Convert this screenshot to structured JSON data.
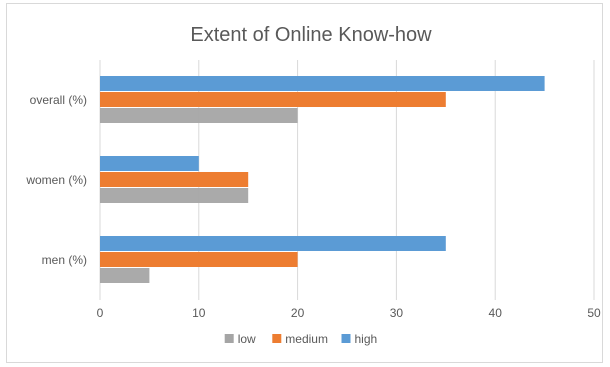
{
  "chart_data": {
    "type": "bar",
    "orientation": "horizontal",
    "title": "Extent of Online Know-how",
    "categories": [
      "men (%)",
      "women (%)",
      "overall (%)"
    ],
    "series": [
      {
        "name": "low",
        "color": "#a5a5a5",
        "values": [
          5,
          15,
          20
        ]
      },
      {
        "name": "medium",
        "color": "#ed7d31",
        "values": [
          20,
          15,
          35
        ]
      },
      {
        "name": "high",
        "color": "#5b9bd5",
        "values": [
          35,
          10,
          45
        ]
      }
    ],
    "xlim": [
      0,
      50
    ],
    "x_ticks": [
      "0",
      "10",
      "20",
      "30",
      "40",
      "50"
    ],
    "grid": true,
    "legend_position": "bottom"
  }
}
